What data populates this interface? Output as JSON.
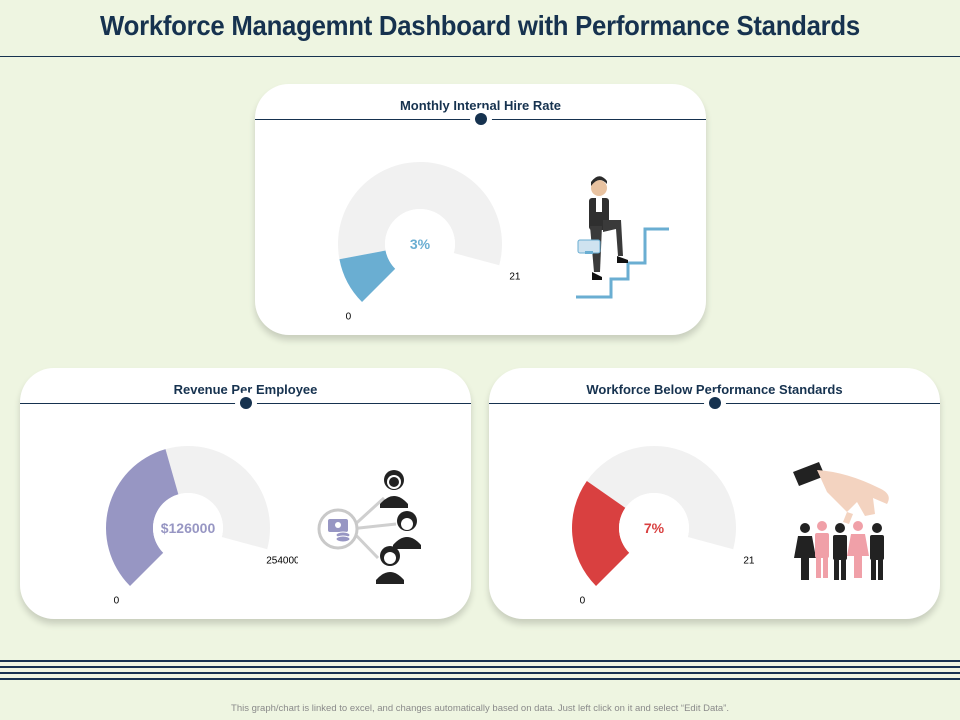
{
  "page": {
    "title": "Workforce Managemnt Dashboard with Performance Standards",
    "footer": "This graph/chart is linked to excel, and changes automatically  based on data. Just left click on it and select “Edit Data”."
  },
  "cards": [
    {
      "title": "Monthly Internal Hire Rate",
      "min_label": "0",
      "max_label": "21",
      "value_label": "3%",
      "illustration": "man-climbing-stairs-icon"
    },
    {
      "title": "Revenue Per Employee",
      "min_label": "0",
      "max_label": "254000",
      "value_label": "$126000",
      "illustration": "money-people-network-icon"
    },
    {
      "title": "Workforce Below Performance Standards",
      "min_label": "0",
      "max_label": "21",
      "value_label": "7%",
      "illustration": "hand-picking-people-icon"
    }
  ],
  "chart_data": [
    {
      "type": "gauge",
      "title": "Monthly Internal Hire Rate",
      "min": 0,
      "max": 21,
      "value": 3,
      "value_label": "3%",
      "color": "#6aaed2",
      "track_color": "#f1f1f1"
    },
    {
      "type": "gauge",
      "title": "Revenue Per Employee",
      "min": 0,
      "max": 254000,
      "value": 126000,
      "value_label": "$126000",
      "color": "#9796c3",
      "track_color": "#f1f1f1"
    },
    {
      "type": "gauge",
      "title": "Workforce Below Performance Standards",
      "min": 0,
      "max": 21,
      "value": 7,
      "value_label": "7%",
      "color": "#d94040",
      "track_color": "#f1f1f1"
    }
  ]
}
